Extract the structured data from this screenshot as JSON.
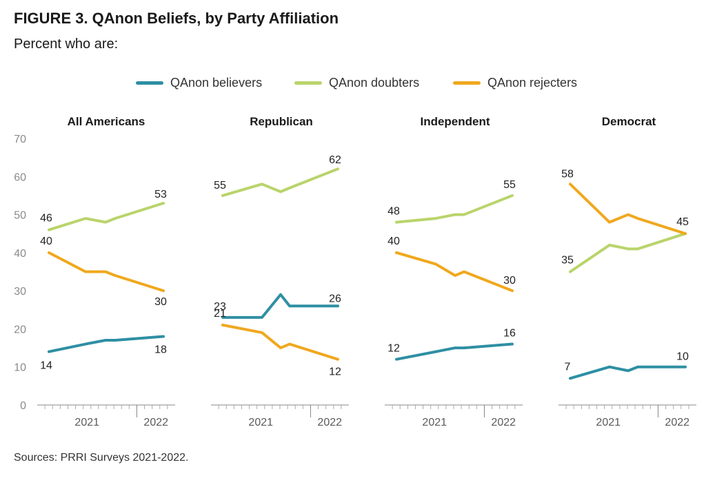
{
  "title": "FIGURE 3.  QAnon Beliefs, by Party Affiliation",
  "subtitle": "Percent who are:",
  "source": "Sources: PRRI Surveys 2021-2022.",
  "colors": {
    "believers": "#2e8fa3",
    "doubters": "#b9d46b",
    "rejecters": "#f0a81e"
  },
  "legend": [
    {
      "label": "QAnon believers",
      "color": "#2e8fa3"
    },
    {
      "label": "QAnon doubters",
      "color": "#b9d46b"
    },
    {
      "label": "QAnon rejecters",
      "color": "#f0a81e"
    }
  ],
  "chart_data": {
    "type": "line",
    "ylim": [
      0,
      70
    ],
    "yticks": [
      0,
      10,
      20,
      30,
      40,
      50,
      60,
      70
    ],
    "xticklabels": [
      "2021",
      "2022"
    ],
    "grid": false,
    "legend_position": "top",
    "panels": [
      {
        "title": "All Americans",
        "series": [
          {
            "name": "QAnon believers",
            "values": [
              14,
              16,
              17,
              17,
              18
            ],
            "labels": [
              "14",
              "18"
            ]
          },
          {
            "name": "QAnon doubters",
            "values": [
              46,
              49,
              48,
              49,
              53
            ],
            "labels": [
              "46",
              "53"
            ]
          },
          {
            "name": "QAnon rejecters",
            "values": [
              40,
              35,
              35,
              34,
              30
            ],
            "labels": [
              "40",
              "30"
            ]
          }
        ]
      },
      {
        "title": "Republican",
        "series": [
          {
            "name": "QAnon believers",
            "values": [
              23,
              23,
              29,
              26,
              26
            ],
            "labels": [
              "23",
              "26"
            ]
          },
          {
            "name": "QAnon doubters",
            "values": [
              55,
              58,
              56,
              57,
              62
            ],
            "labels": [
              "55",
              "62"
            ]
          },
          {
            "name": "QAnon rejecters",
            "values": [
              21,
              19,
              15,
              16,
              12
            ],
            "labels": [
              "21",
              "12"
            ]
          }
        ]
      },
      {
        "title": "Independent",
        "series": [
          {
            "name": "QAnon believers",
            "values": [
              12,
              14,
              15,
              15,
              16
            ],
            "labels": [
              "12",
              "16"
            ]
          },
          {
            "name": "QAnon doubters",
            "values": [
              48,
              49,
              50,
              50,
              55
            ],
            "labels": [
              "48",
              "55"
            ]
          },
          {
            "name": "QAnon rejecters",
            "values": [
              40,
              37,
              34,
              35,
              30
            ],
            "labels": [
              "40",
              "30"
            ]
          }
        ]
      },
      {
        "title": "Democrat",
        "series": [
          {
            "name": "QAnon believers",
            "values": [
              7,
              10,
              9,
              10,
              10
            ],
            "labels": [
              "7",
              "10"
            ]
          },
          {
            "name": "QAnon doubters",
            "values": [
              35,
              42,
              41,
              41,
              45
            ],
            "labels": [
              "35",
              "45"
            ]
          },
          {
            "name": "QAnon rejecters",
            "values": [
              58,
              48,
              50,
              49,
              45
            ],
            "labels": [
              "58",
              ""
            ]
          }
        ]
      }
    ]
  }
}
